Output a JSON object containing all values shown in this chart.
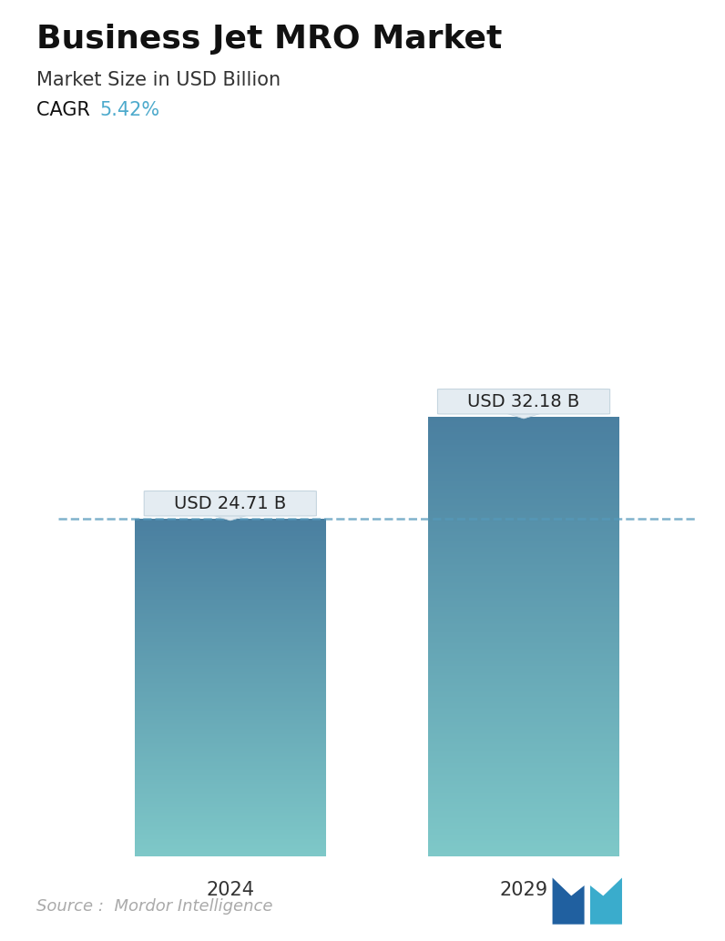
{
  "title": "Business Jet MRO Market",
  "subtitle": "Market Size in USD Billion",
  "cagr_label": "CAGR  ",
  "cagr_value": "5.42%",
  "cagr_color": "#4DAACC",
  "categories": [
    "2024",
    "2029"
  ],
  "values": [
    24.71,
    32.18
  ],
  "labels": [
    "USD 24.71 B",
    "USD 32.18 B"
  ],
  "bar_color_top": "#4A7FA0",
  "bar_color_bottom": "#7EC8C8",
  "dashed_line_color": "#5599BB",
  "dashed_line_value": 24.71,
  "source_text": "Source :  Mordor Intelligence",
  "source_color": "#AAAAAA",
  "background_color": "#FFFFFF",
  "title_fontsize": 26,
  "subtitle_fontsize": 15,
  "cagr_fontsize": 15,
  "label_fontsize": 14,
  "tick_fontsize": 15,
  "ylim": [
    0,
    40
  ],
  "callout_bg": "#E4ECF2",
  "callout_border": "#C5D5DF",
  "logo_left_color": "#2060A0",
  "logo_right_color": "#3AACCC"
}
